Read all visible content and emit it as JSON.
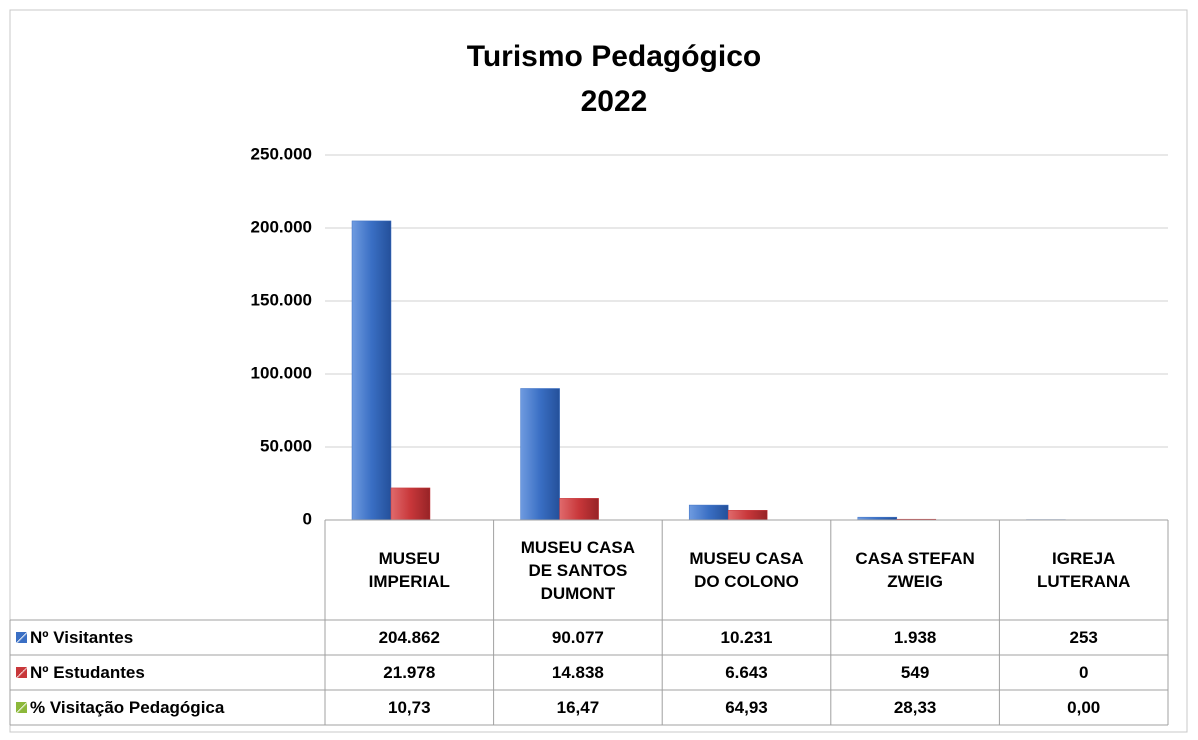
{
  "chart_data": {
    "type": "bar",
    "title": "Turismo Pedagógico",
    "subtitle": "2022",
    "categories": [
      "MUSEU IMPERIAL",
      "MUSEU CASA DE SANTOS DUMONT",
      "MUSEU CASA DO COLONO",
      "CASA STEFAN ZWEIG",
      "IGREJA LUTERANA"
    ],
    "series": [
      {
        "name": "Nº Visitantes",
        "color": "#3a6fc4",
        "values": [
          204862,
          90077,
          10231,
          1938,
          253
        ],
        "value_labels": [
          "204.862",
          "90.077",
          "10.231",
          "1.938",
          "253"
        ]
      },
      {
        "name": "Nº Estudantes",
        "color": "#c8373a",
        "values": [
          21978,
          14838,
          6643,
          549,
          0
        ],
        "value_labels": [
          "21.978",
          "14.838",
          "6.643",
          "549",
          "0"
        ]
      },
      {
        "name": "% Visitação Pedagógica",
        "color": "#8cb83a",
        "values": [
          10.73,
          16.47,
          64.93,
          28.33,
          0.0
        ],
        "value_labels": [
          "10,73",
          "16,47",
          "64,93",
          "28,33",
          "0,00"
        ]
      }
    ],
    "ylim": [
      0,
      250000
    ],
    "yticks": [
      0,
      {
        "value": 50000,
        "label": "50.000"
      },
      {
        "value": 100000,
        "label": "100.000"
      },
      {
        "value": 150000,
        "label": "150.000"
      },
      {
        "value": 200000,
        "label": "200.000"
      },
      {
        "value": 250000,
        "label": "250.000"
      }
    ],
    "grid": true,
    "data_table": true
  }
}
